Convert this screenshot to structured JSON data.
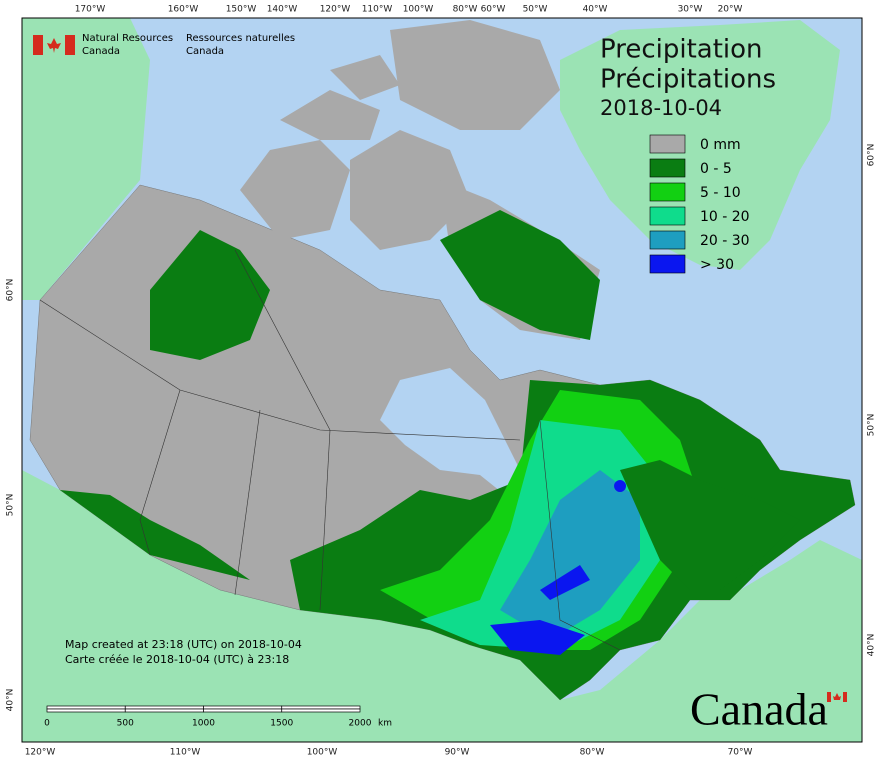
{
  "header": {
    "agency_en": [
      "Natural Resources",
      "Canada"
    ],
    "agency_fr": [
      "Ressources naturelles",
      "Canada"
    ]
  },
  "title": {
    "en": "Precipitation",
    "fr": "Précipitations",
    "date": "2018-10-04"
  },
  "legend": [
    {
      "label": "0 mm",
      "color": "#a9a9a9"
    },
    {
      "label": "0 - 5",
      "color": "#0a7d12"
    },
    {
      "label": "5 - 10",
      "color": "#12d012"
    },
    {
      "label": "10 - 20",
      "color": "#0fdc8c"
    },
    {
      "label": "20 - 30",
      "color": "#1e9ec0"
    },
    {
      "label": "> 30",
      "color": "#0a16f0"
    }
  ],
  "graticule": {
    "top": [
      "170°W",
      "160°W",
      "150°W",
      "140°W",
      "120°W",
      "110°W",
      "100°W",
      "80°W",
      "60°W",
      "50°W",
      "40°W",
      "30°W",
      "20°W"
    ],
    "bottom": [
      "120°W",
      "110°W",
      "100°W",
      "90°W",
      "80°W",
      "70°W"
    ],
    "left": [
      "60°N",
      "50°N",
      "40°N"
    ],
    "right": [
      "60°N",
      "50°N",
      "40°N"
    ]
  },
  "footer": {
    "created_en": "Map created at 23:18 (UTC) on 2018-10-04",
    "created_fr": "Carte créée le 2018-10-04 (UTC) à 23:18"
  },
  "scale": {
    "ticks": [
      0,
      500,
      1000,
      1500,
      2000
    ],
    "unit": "km"
  },
  "wordmark": "Canada"
}
